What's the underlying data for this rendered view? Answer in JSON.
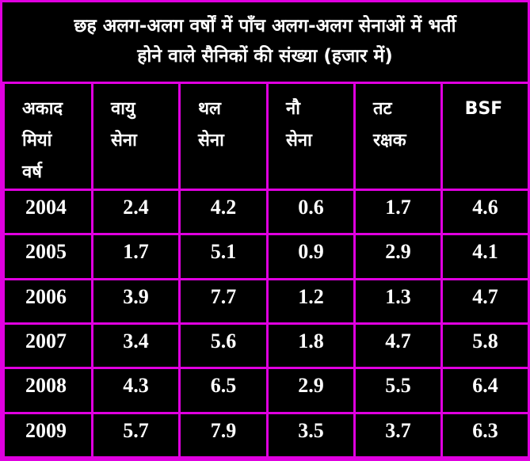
{
  "title_lines": [
    "छह अलग-अलग वर्षों में पाँच अलग-अलग सेनाओं में भर्ती",
    "होने वाले सैनिकों की संख्या (हजार में)"
  ],
  "colors": {
    "border": "#e000e0",
    "background": "#000000",
    "text": "#ffffff"
  },
  "chart_data": {
    "type": "table",
    "title": "छह अलग-अलग वर्षों में पाँच अलग-अलग सेनाओं में भर्ती होने वाले सैनिकों की संख्या (हजार में)",
    "headers": [
      [
        "अकाद",
        "मियां",
        "वर्ष"
      ],
      [
        "वायु",
        "सेना"
      ],
      [
        "थल",
        "सेना"
      ],
      [
        "नौ",
        "सेना"
      ],
      [
        "तट",
        "रक्षक"
      ],
      [
        "BSF"
      ]
    ],
    "rows": [
      [
        "2004",
        "2.4",
        "4.2",
        "0.6",
        "1.7",
        "4.6"
      ],
      [
        "2005",
        "1.7",
        "5.1",
        "0.9",
        "2.9",
        "4.1"
      ],
      [
        "2006",
        "3.9",
        "7.7",
        "1.2",
        "1.3",
        "4.7"
      ],
      [
        "2007",
        "3.4",
        "5.6",
        "1.8",
        "4.7",
        "5.8"
      ],
      [
        "2008",
        "4.3",
        "6.5",
        "2.9",
        "5.5",
        "6.4"
      ],
      [
        "2009",
        "5.7",
        "7.9",
        "3.5",
        "3.7",
        "6.3"
      ]
    ]
  }
}
